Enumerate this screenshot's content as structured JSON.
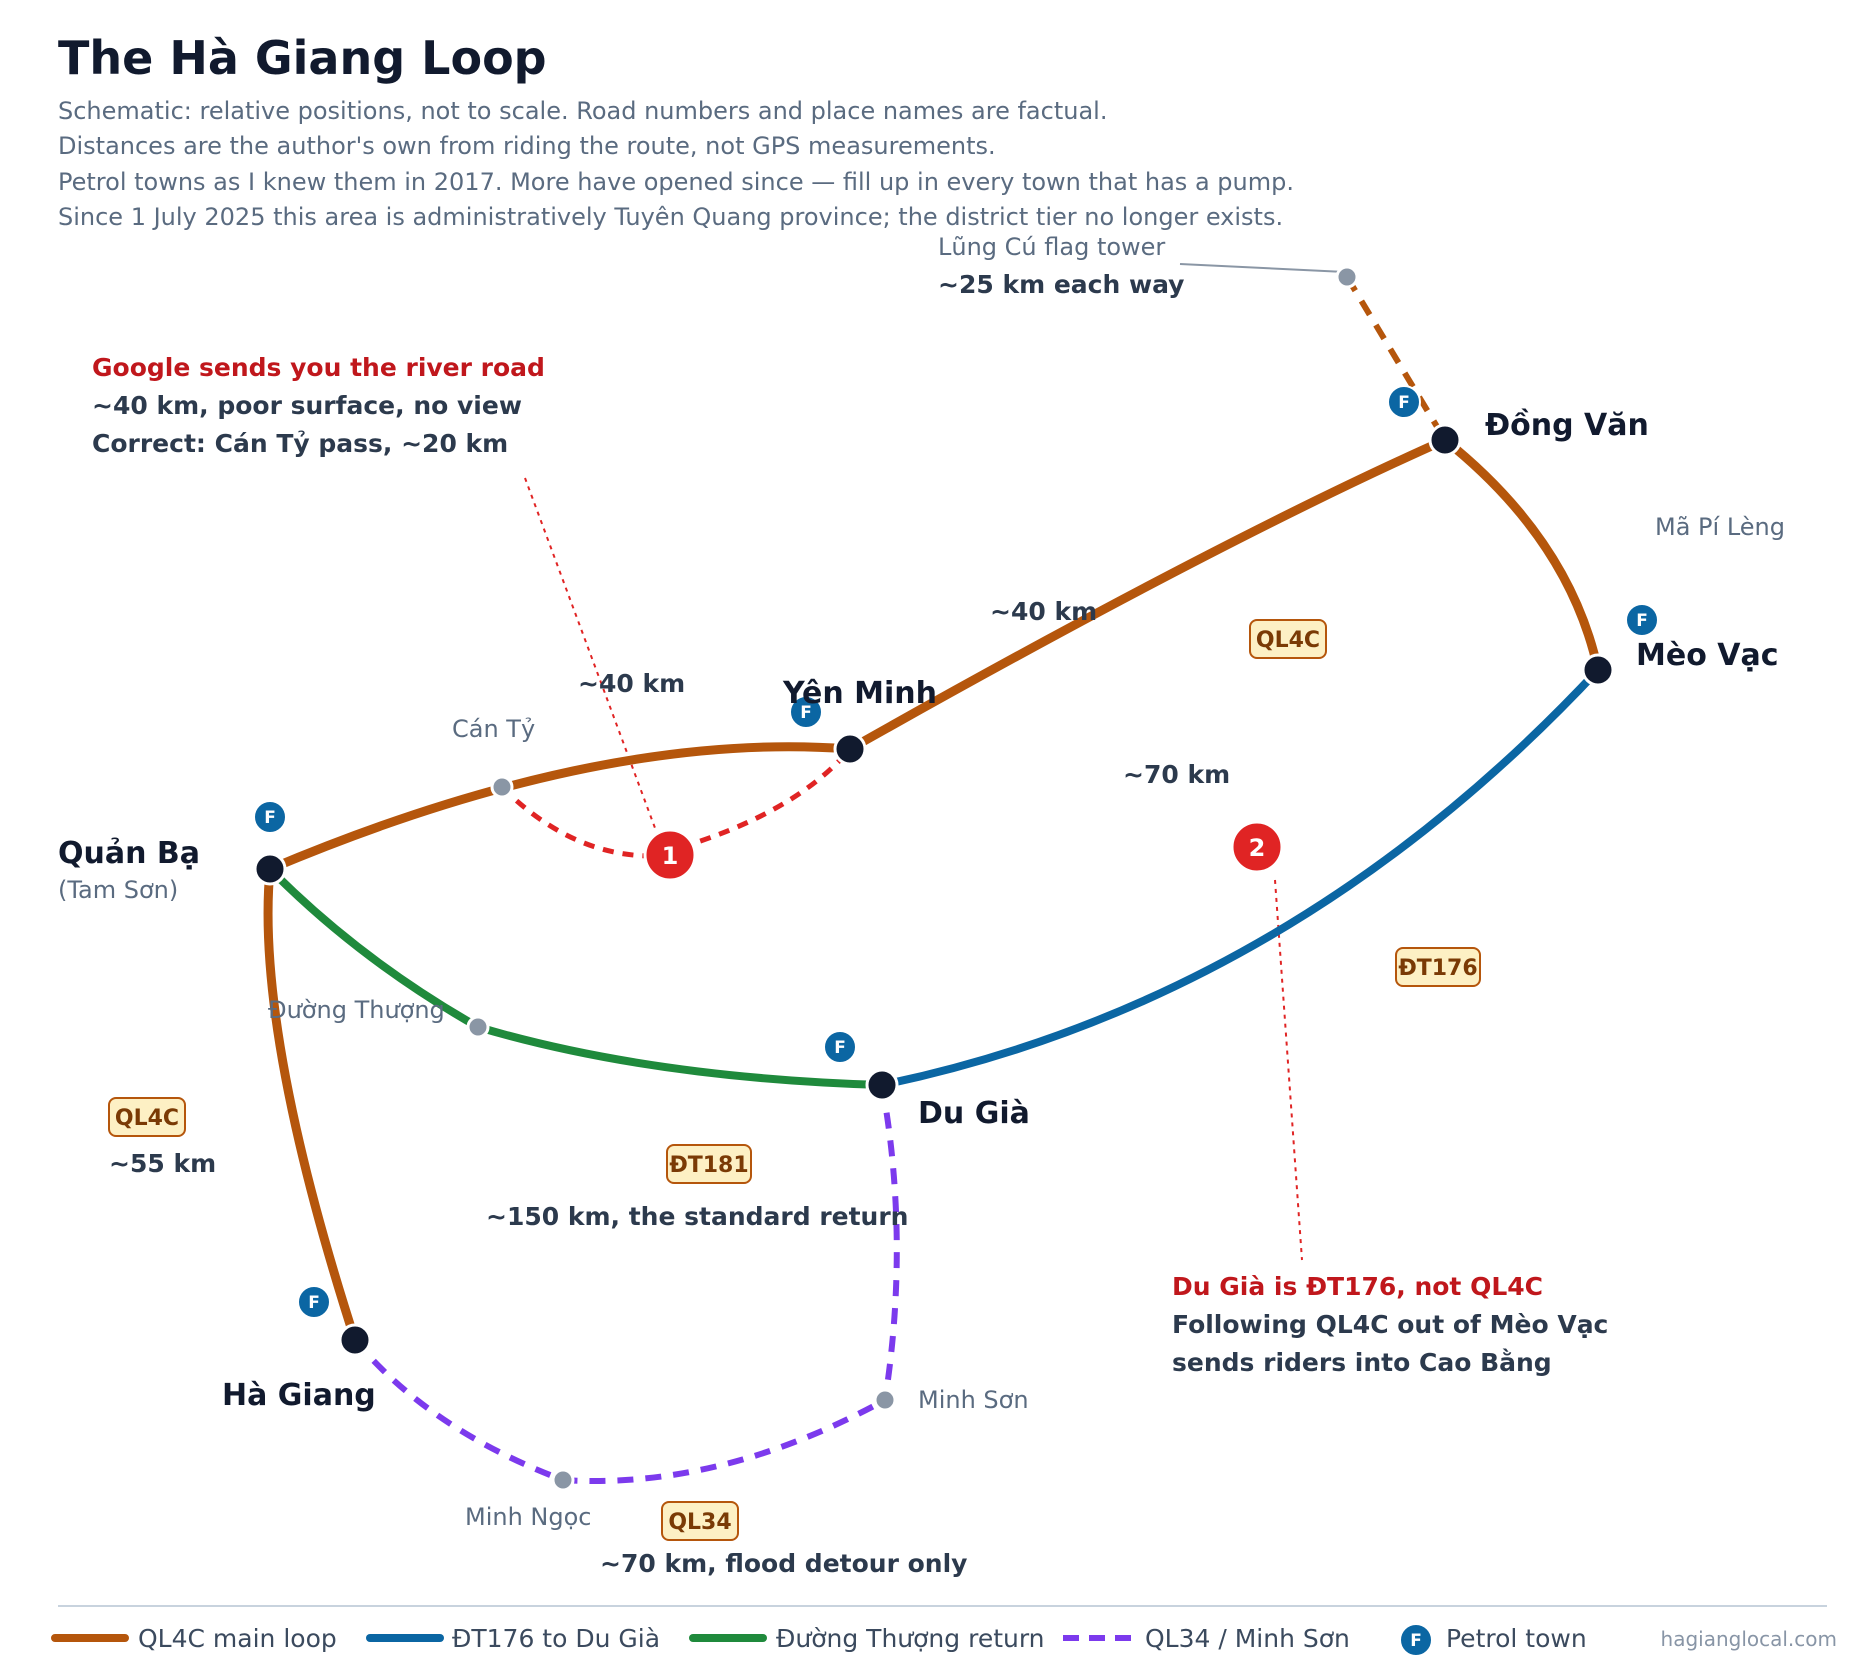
{
  "title": "The Hà Giang Loop",
  "subtitle_lines": [
    "Schematic: relative positions, not to scale. Road numbers and place names are factual.",
    "Distances are the author's own from riding the route, not GPS measurements.",
    "Petrol towns as I knew them in 2017. More have opened since — fill up in every town that has a pump.",
    "Since 1 July 2025 this area is administratively Tuyên Quang province; the district tier no longer exists."
  ],
  "colors": {
    "ql4c": "#b5560c",
    "dt176": "#0b66a3",
    "duong_thuong": "#1f8a3c",
    "ql34": "#7c3aed",
    "warning": "#e02424",
    "town_dot": "#111a2e",
    "minor_dot": "#8a96a5",
    "petrol": "#0b66a3",
    "badge_fill": "#fdf0c4",
    "badge_stroke": "#b5560c"
  },
  "towns": {
    "quan_ba": "Quản Bạ",
    "quan_ba_sub": "(Tam Sơn)",
    "yen_minh": "Yên Minh",
    "dong_van": "Đồng Văn",
    "meo_vac": "Mèo Vạc",
    "du_gia": "Du Già",
    "ha_giang": "Hà Giang"
  },
  "places": {
    "can_ty": "Cán Tỷ",
    "duong_thuong": "Đường Thượng",
    "ma_pi_leng": "Mã Pí Lèng",
    "minh_son": "Minh Sơn",
    "minh_ngoc": "Minh Ngọc",
    "lung_cu": "Lũng Cú flag tower",
    "lung_cu_dist": "~25 km each way"
  },
  "road_badges": {
    "ql4c_north": "QL4C",
    "ql4c_west": "QL4C",
    "dt176": "ĐT176",
    "dt181": "ĐT181",
    "ql34": "QL34"
  },
  "distances": {
    "quanba_yenminh": "~40 km",
    "yenminh_dongvan": "~40 km",
    "meovac_dugia": "~70 km",
    "hagiang_quanba": "~55 km",
    "standard_return": "~150 km, the standard return",
    "flood_detour": "~70 km, flood detour only"
  },
  "callouts": {
    "c1_marker": "1",
    "c1_title": "Google sends you the river road",
    "c1_line1": "~40 km, poor surface, no view",
    "c1_line2": "Correct: Cán Tỷ pass, ~20 km",
    "c2_marker": "2",
    "c2_title": "Du Già is ĐT176, not QL4C",
    "c2_line1": "Following QL4C out of Mèo Vạc",
    "c2_line2": "sends riders into Cao Bằng"
  },
  "petrol_marker": "F",
  "legend": {
    "ql4c": "QL4C main loop",
    "dt176": "ĐT176 to Du Già",
    "duong_thuong": "Đường Thượng return",
    "ql34": "QL34 / Minh Sơn",
    "petrol": "Petrol town"
  },
  "credit": "hagianglocal.com"
}
